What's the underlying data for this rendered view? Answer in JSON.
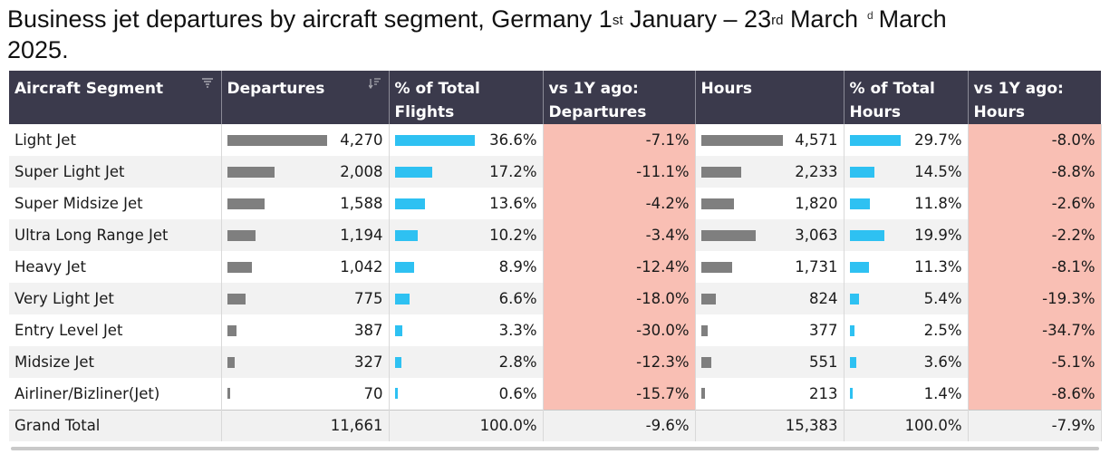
{
  "title": {
    "part1": "Business jet departures by aircraft segment, Germany 1",
    "sup1": "st",
    "part2": " January – 23",
    "sup2": "rd",
    "part3": " March",
    "ghost": "d",
    "part4": "March",
    "line2": "2025."
  },
  "headers": {
    "segment_l1": "Aircraft Segment",
    "departures_l1": "Departures",
    "pct_flights_l1": "% of Total",
    "pct_flights_l2": "Flights",
    "vs_dep_l1": "vs 1Y ago:",
    "vs_dep_l2": "Departures",
    "hours_l1": "Hours",
    "pct_hours_l1": "% of Total",
    "pct_hours_l2": "Hours",
    "vs_hours_l1": "vs 1Y ago:",
    "vs_hours_l2": "Hours"
  },
  "colors": {
    "header_bg": "#3b3a4c",
    "bar_grey": "#7f7f7f",
    "bar_blue": "#2ec1f2",
    "negative_bg": "#f9bfb4"
  },
  "chart_data": {
    "type": "table",
    "columns": [
      "Aircraft Segment",
      "Departures",
      "% of Total Flights",
      "vs 1Y ago: Departures",
      "Hours",
      "% of Total Hours",
      "vs 1Y ago: Hours"
    ],
    "rows": [
      {
        "segment": "Light Jet",
        "departures": 4270,
        "departures_text": "4,270",
        "pct_flights": 36.6,
        "pct_flights_text": "36.6%",
        "vs_dep_text": "-7.1%",
        "hours": 4571,
        "hours_text": "4,571",
        "pct_hours": 29.7,
        "pct_hours_text": "29.7%",
        "vs_hours_text": "-8.0%"
      },
      {
        "segment": "Super Light Jet",
        "departures": 2008,
        "departures_text": "2,008",
        "pct_flights": 17.2,
        "pct_flights_text": "17.2%",
        "vs_dep_text": "-11.1%",
        "hours": 2233,
        "hours_text": "2,233",
        "pct_hours": 14.5,
        "pct_hours_text": "14.5%",
        "vs_hours_text": "-8.8%"
      },
      {
        "segment": "Super Midsize Jet",
        "departures": 1588,
        "departures_text": "1,588",
        "pct_flights": 13.6,
        "pct_flights_text": "13.6%",
        "vs_dep_text": "-4.2%",
        "hours": 1820,
        "hours_text": "1,820",
        "pct_hours": 11.8,
        "pct_hours_text": "11.8%",
        "vs_hours_text": "-2.6%"
      },
      {
        "segment": "Ultra Long Range Jet",
        "departures": 1194,
        "departures_text": "1,194",
        "pct_flights": 10.2,
        "pct_flights_text": "10.2%",
        "vs_dep_text": "-3.4%",
        "hours": 3063,
        "hours_text": "3,063",
        "pct_hours": 19.9,
        "pct_hours_text": "19.9%",
        "vs_hours_text": "-2.2%"
      },
      {
        "segment": "Heavy Jet",
        "departures": 1042,
        "departures_text": "1,042",
        "pct_flights": 8.9,
        "pct_flights_text": "8.9%",
        "vs_dep_text": "-12.4%",
        "hours": 1731,
        "hours_text": "1,731",
        "pct_hours": 11.3,
        "pct_hours_text": "11.3%",
        "vs_hours_text": "-8.1%"
      },
      {
        "segment": "Very Light Jet",
        "departures": 775,
        "departures_text": "775",
        "pct_flights": 6.6,
        "pct_flights_text": "6.6%",
        "vs_dep_text": "-18.0%",
        "hours": 824,
        "hours_text": "824",
        "pct_hours": 5.4,
        "pct_hours_text": "5.4%",
        "vs_hours_text": "-19.3%"
      },
      {
        "segment": "Entry Level Jet",
        "departures": 387,
        "departures_text": "387",
        "pct_flights": 3.3,
        "pct_flights_text": "3.3%",
        "vs_dep_text": "-30.0%",
        "hours": 377,
        "hours_text": "377",
        "pct_hours": 2.5,
        "pct_hours_text": "2.5%",
        "vs_hours_text": "-34.7%"
      },
      {
        "segment": "Midsize Jet",
        "departures": 327,
        "departures_text": "327",
        "pct_flights": 2.8,
        "pct_flights_text": "2.8%",
        "vs_dep_text": "-12.3%",
        "hours": 551,
        "hours_text": "551",
        "pct_hours": 3.6,
        "pct_hours_text": "3.6%",
        "vs_hours_text": "-5.1%"
      },
      {
        "segment": "Airliner/Bizliner(Jet)",
        "departures": 70,
        "departures_text": "70",
        "pct_flights": 0.6,
        "pct_flights_text": "0.6%",
        "vs_dep_text": "-15.7%",
        "hours": 213,
        "hours_text": "213",
        "pct_hours": 1.4,
        "pct_hours_text": "1.4%",
        "vs_hours_text": "-8.6%"
      }
    ],
    "total": {
      "segment": "Grand Total",
      "departures_text": "11,661",
      "pct_flights_text": "100.0%",
      "vs_dep_text": "-9.6%",
      "hours_text": "15,383",
      "pct_hours_text": "100.0%",
      "vs_hours_text": "-7.9%"
    }
  }
}
